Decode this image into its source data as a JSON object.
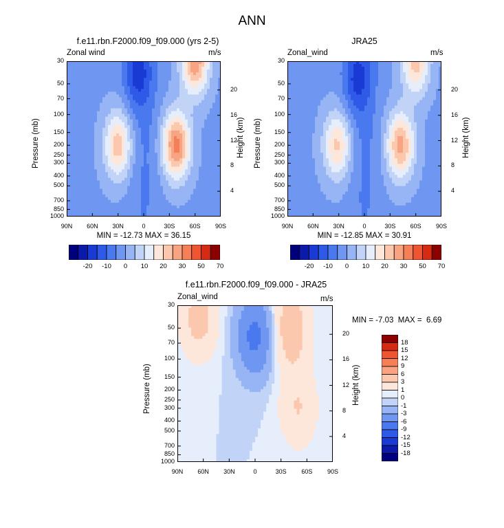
{
  "title": "ANN",
  "colors": {
    "diverging_main": [
      "#00007f",
      "#0b1aa9",
      "#1a3ad6",
      "#2f5ae8",
      "#4a78ee",
      "#6f97f1",
      "#97b5f5",
      "#c1d4f8",
      "#e6eefc",
      "#fde6da",
      "#fbc7ad",
      "#f8a483",
      "#f57f57",
      "#ee5530",
      "#d62a13",
      "#8b0000"
    ],
    "diverging_diff": [
      "#00007f",
      "#0b1aa9",
      "#1a3ad6",
      "#2f5ae8",
      "#4a78ee",
      "#6f97f1",
      "#97b5f5",
      "#c1d4f8",
      "#e6eefc",
      "#fde6da",
      "#fbc7ad",
      "#f8a483",
      "#f57f57",
      "#ee5530",
      "#d62a13",
      "#8b0000"
    ]
  },
  "chart_data": [
    {
      "type": "heatmap",
      "title": "f.e11.rbn.F2000.f09_f09.000 (yrs 2-5)",
      "left_label": "Zonal wind",
      "right_label": "m/s",
      "xlabel": "",
      "ylabel": "Pressure (mb)",
      "ylabel_right": "Height (km)",
      "x_ticks": [
        "90N",
        "60N",
        "30N",
        "0",
        "30S",
        "60S",
        "90S"
      ],
      "y_ticks": [
        "30",
        "50",
        "70",
        "100",
        "150",
        "200",
        "250",
        "300",
        "400",
        "500",
        "700",
        "850",
        "1000"
      ],
      "y_ticks_right": [
        "20",
        "16",
        "12",
        "8",
        "4"
      ],
      "stats": "MIN = -12.73  MAX =  36.15",
      "colorbar_labels": [
        "-20",
        "-10",
        "0",
        "10",
        "20",
        "30",
        "50",
        "70"
      ],
      "levels": [
        -20,
        -15,
        -10,
        -5,
        0,
        5,
        10,
        15,
        20,
        25,
        30,
        35,
        40,
        50,
        60,
        70
      ],
      "features": [
        {
          "lat": 30,
          "p": 200,
          "peak": 24
        },
        {
          "lat": -38,
          "p": 200,
          "peak": 33
        },
        {
          "lat": -60,
          "p": 30,
          "peak": 30
        },
        {
          "lat": 8,
          "p": 40,
          "peak": -12
        }
      ]
    },
    {
      "type": "heatmap",
      "title": "JRA25",
      "left_label": "Zonal_wind",
      "right_label": "m/s",
      "xlabel": "",
      "ylabel": "Pressure (mb)",
      "ylabel_right": "Height (km)",
      "x_ticks": [
        "90N",
        "60N",
        "30N",
        "0",
        "30S",
        "60S",
        "90S"
      ],
      "y_ticks": [
        "30",
        "50",
        "70",
        "100",
        "150",
        "200",
        "250",
        "300",
        "400",
        "500",
        "700",
        "850",
        "1000"
      ],
      "y_ticks_right": [
        "20",
        "16",
        "12",
        "8",
        "4"
      ],
      "stats": "MIN = -12.85  MAX =  30.91",
      "colorbar_labels": [
        "-20",
        "-10",
        "0",
        "10",
        "20",
        "30",
        "50",
        "70"
      ],
      "levels": [
        -20,
        -15,
        -10,
        -5,
        0,
        5,
        10,
        15,
        20,
        25,
        30,
        35,
        40,
        50,
        60,
        70
      ],
      "features": [
        {
          "lat": 32,
          "p": 200,
          "peak": 22
        },
        {
          "lat": -42,
          "p": 200,
          "peak": 28
        },
        {
          "lat": -60,
          "p": 30,
          "peak": 24
        },
        {
          "lat": 10,
          "p": 45,
          "peak": -12
        }
      ]
    },
    {
      "type": "heatmap",
      "title": "f.e11.rbn.F2000.f09_f09.000 - JRA25",
      "left_label": "Zonal_wind",
      "right_label": "m/s",
      "xlabel": "",
      "ylabel": "Pressure (mb)",
      "ylabel_right": "Height (km)",
      "x_ticks": [
        "90N",
        "60N",
        "30N",
        "0",
        "30S",
        "60S",
        "90S"
      ],
      "y_ticks": [
        "30",
        "50",
        "70",
        "100",
        "150",
        "200",
        "250",
        "300",
        "400",
        "500",
        "700",
        "850",
        "1000"
      ],
      "y_ticks_right": [
        "20",
        "16",
        "12",
        "8",
        "4"
      ],
      "stats": "MIN = -7.03  MAX =  6.69",
      "colorbar_labels": [
        "18",
        "15",
        "12",
        "9",
        "6",
        "3",
        "1",
        "0",
        "-1",
        "-3",
        "-6",
        "-9",
        "-12",
        "-15",
        "-18"
      ],
      "levels": [
        -18,
        -15,
        -12,
        -9,
        -6,
        -3,
        -1,
        0,
        1,
        3,
        6,
        9,
        12,
        15,
        18
      ],
      "features": [
        {
          "lat": 65,
          "p": 40,
          "peak": 4
        },
        {
          "lat": -40,
          "p": 50,
          "peak": 5
        },
        {
          "lat": 0,
          "p": 60,
          "peak": -7
        },
        {
          "lat": -50,
          "p": 300,
          "peak": 3
        }
      ]
    }
  ]
}
